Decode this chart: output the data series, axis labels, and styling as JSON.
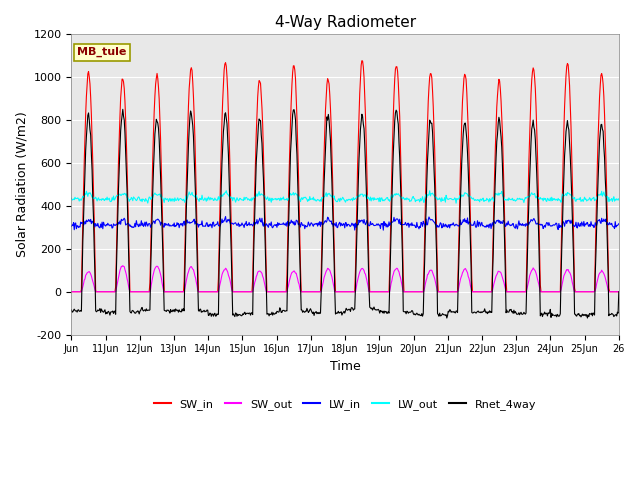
{
  "title": "4-Way Radiometer",
  "xlabel": "Time",
  "ylabel": "Solar Radiation (W/m2)",
  "ylim": [
    -200,
    1200
  ],
  "yticks": [
    -200,
    0,
    200,
    400,
    600,
    800,
    1000,
    1200
  ],
  "label_tag": "MB_tule",
  "legend_entries": [
    "SW_in",
    "SW_out",
    "LW_in",
    "LW_out",
    "Rnet_4way"
  ],
  "line_colors": [
    "red",
    "magenta",
    "blue",
    "cyan",
    "black"
  ],
  "xtick_labels": [
    "Jun",
    "11Jun",
    "12Jun",
    "13Jun",
    "14Jun",
    "15Jun",
    "16Jun",
    "17Jun",
    "18Jun",
    "19Jun",
    "20Jun",
    "21Jun",
    "22Jun",
    "23Jun",
    "24Jun",
    "25Jun",
    "26"
  ],
  "n_days": 16,
  "plot_bg_color": "#e8e8e8"
}
